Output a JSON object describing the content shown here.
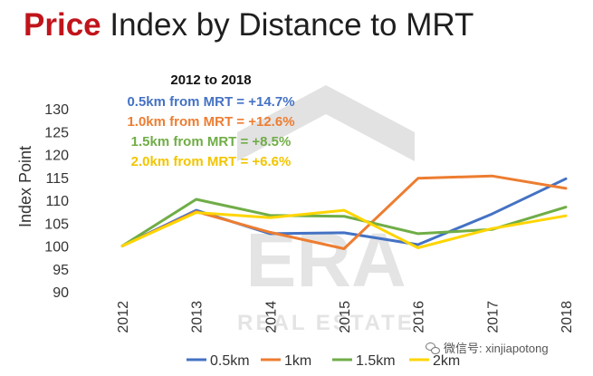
{
  "header": {
    "title_accent": "Price",
    "title_rest": " Index by Distance to MRT"
  },
  "annotation": {
    "heading": "2012 to 2018",
    "lines": [
      {
        "text": "0.5km from MRT = +14.7%",
        "color": "#4472c4"
      },
      {
        "text": "1.0km from MRT =  +12.6%",
        "color": "#ed7d31"
      },
      {
        "text": "1.5km from MRT = +8.5%",
        "color": "#70ad47"
      },
      {
        "text": "2.0km from MRT = +6.6%",
        "color": "#f2c500"
      }
    ]
  },
  "watermark": {
    "brand": "ERA",
    "subtitle": "REAL ESTATE"
  },
  "footer": {
    "wechat_text": "微信号: xinjiapotong",
    "wechat_icon": "wechat-icon"
  },
  "chart_data": {
    "type": "line",
    "x": [
      "2012",
      "2013",
      "2014",
      "2015",
      "2016",
      "2017",
      "2018"
    ],
    "ylabel": "Index Point",
    "xlabel": "",
    "ylim": [
      90,
      130
    ],
    "yticks": [
      90,
      95,
      100,
      105,
      110,
      115,
      120,
      125,
      130
    ],
    "grid": false,
    "legend_position": "bottom",
    "series": [
      {
        "name": "0.5km",
        "color": "#4472c4",
        "values": [
          100,
          107.8,
          102.7,
          102.9,
          100.3,
          107.0,
          114.7
        ]
      },
      {
        "name": "1km",
        "color": "#ed7d31",
        "values": [
          100,
          107.5,
          103.0,
          99.4,
          114.8,
          115.3,
          112.6
        ]
      },
      {
        "name": "1.5km",
        "color": "#70ad47",
        "values": [
          100,
          110.2,
          106.7,
          106.5,
          102.7,
          103.6,
          108.5
        ]
      },
      {
        "name": "2km",
        "color": "#ffd500",
        "values": [
          100,
          107.3,
          106.2,
          107.8,
          99.6,
          103.8,
          106.6
        ]
      }
    ]
  }
}
